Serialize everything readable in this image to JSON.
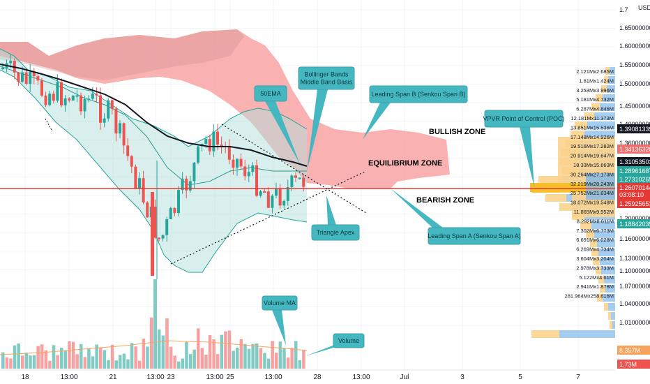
{
  "chart_data": {
    "type": "candlestick",
    "currency": "USD",
    "y_ticks": [
      "1.7",
      "1.65000000",
      "1.60000000",
      "1.55000000",
      "1.50000000",
      "1.45000000",
      "1.40000000",
      "1.36000000",
      "1.32000000",
      "1.28000000",
      "1.24000000",
      "1.20000000",
      "1.16000000",
      "1.13000000",
      "1.10000000",
      "1.07000000",
      "1.04000000",
      "1.01000000"
    ],
    "x_ticks": [
      "18",
      "13:00",
      "21",
      "13:00",
      "23",
      "13:00",
      "25",
      "13:00",
      "28",
      "13:00",
      "Jul",
      "3",
      "5",
      "7"
    ],
    "price_tags": [
      {
        "value": "1.39081339",
        "color": "#131722"
      },
      {
        "value": "1.34136320",
        "color": "#f26d6d"
      },
      {
        "value": "1.31053503",
        "color": "#131722"
      },
      {
        "value": "1.28961687",
        "color": "#26a69a"
      },
      {
        "value": "1.27310265",
        "color": "#26a69a"
      },
      {
        "value": "1.26070144",
        "color": "#e53935"
      },
      {
        "value": "03:08:10",
        "color": "#e53935"
      },
      {
        "value": "1.25925653",
        "color": "#e53935"
      },
      {
        "value": "1.18842035",
        "color": "#26a69a"
      },
      {
        "value": "8.357M",
        "color": "#f7a35c"
      },
      {
        "value": "1.73M",
        "color": "#ef5350"
      }
    ],
    "volume_profile_labels": [
      "2.121M",
      "2.685M",
      "1.81M",
      "1.424M",
      "3.253M",
      "3.996M",
      "5.181M",
      "4.732M",
      "6.287M",
      "4.846M",
      "12.181M",
      "11.373M",
      "13.851M",
      "15.536M",
      "17.148M",
      "14.926M",
      "19.516M",
      "17.282M",
      "20.914M",
      "19.647M",
      "18.33M",
      "15.663M",
      "30.264M",
      "27.173M",
      "32.219M",
      "28.243M",
      "25.752M",
      "21.834M",
      "18.072M",
      "19.548M",
      "11.865M",
      "9.952M",
      "8.292M",
      "8.611M",
      "7.302M",
      "6.773M",
      "6.691M",
      "6.028M",
      "6.269M",
      "4.734M",
      "3.604M",
      "3.204M",
      "2.978M",
      "3.733M",
      "5.122M",
      "4.61M",
      "2.941M",
      "1.878M",
      "281.964M",
      "258.616M"
    ],
    "annotations": {
      "ema": "50EMA",
      "bb": "Bollinger Bands\nMiddle Band Basis",
      "span_b": "Leading Span B (Senkou Span B)",
      "vpvr": "VPVR Point of Control (POC)",
      "apex": "Triangle Apex",
      "span_a": "Leading Span A (Senkou Span A)",
      "vol_ma": "Volume MA",
      "volume": "Volume",
      "bullish": "BULLISH ZONE",
      "equilibrium": "EQUILIBRIUM ZONE",
      "bearish": "BEARISH ZONE"
    },
    "colors": {
      "up": "#26a69a",
      "down": "#ef5350",
      "cloud": "#f8a3a3",
      "bb_fill": "#b2dfdb",
      "ema": "#131722",
      "red_line": "#e53935",
      "poc": "#f7c02b",
      "vp_up": "#7fb8ea",
      "vp_down": "#fbd38d"
    },
    "ylim": [
      1.0,
      1.7
    ]
  }
}
